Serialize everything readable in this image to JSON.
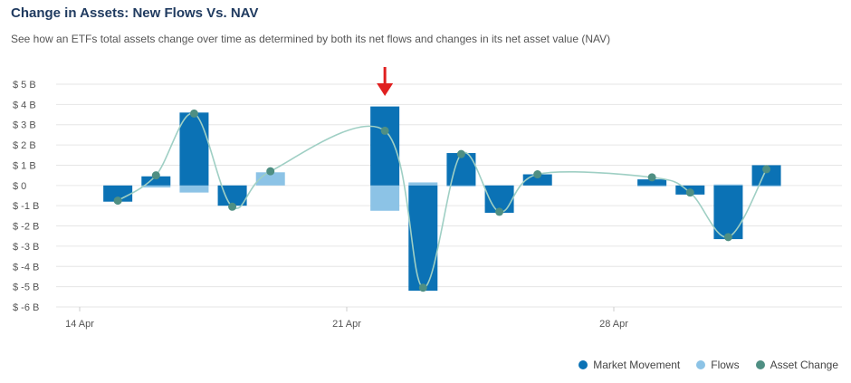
{
  "header": {
    "title": "Change in Assets: New Flows Vs. NAV",
    "subtitle": "See how an ETFs total assets change over time as determined by both its net flows and changes in its net asset value (NAV)"
  },
  "colors": {
    "market_movement": "#0b72b5",
    "flows": "#8cc3e6",
    "asset_change_line": "#9fcfc4",
    "asset_change_dot": "#4f8f83",
    "arrow": "#e02020",
    "grid": "#e6e6e6",
    "axis_text": "#555555"
  },
  "legend": {
    "items": [
      {
        "label": "Market Movement",
        "color": "#0b72b5"
      },
      {
        "label": "Flows",
        "color": "#8cc3e6"
      },
      {
        "label": "Asset Change",
        "color": "#4f8f83"
      }
    ]
  },
  "chart_data": {
    "type": "bar",
    "title": "Change in Assets: New Flows Vs. NAV",
    "ylim": [
      -6,
      5
    ],
    "y_ticks": [
      5,
      4,
      3,
      2,
      1,
      0,
      -1,
      -2,
      -3,
      -4,
      -5,
      -6
    ],
    "y_tick_labels": [
      "$ 5 B",
      "$ 4 B",
      "$ 3 B",
      "$ 2 B",
      "$ 1 B",
      "$ 0",
      "$ -1 B",
      "$ -2 B",
      "$ -3 B",
      "$ -4 B",
      "$ -5 B",
      "$ -6 B"
    ],
    "x_tick_labels": [
      "14 Apr",
      "21 Apr",
      "28 Apr"
    ],
    "x_tick_dates": [
      "2024-04-14",
      "2024-04-21",
      "2024-04-28"
    ],
    "dates": [
      "2024-04-15",
      "2024-04-16",
      "2024-04-17",
      "2024-04-18",
      "2024-04-19",
      "2024-04-22",
      "2024-04-23",
      "2024-04-24",
      "2024-04-25",
      "2024-04-26",
      "2024-04-29",
      "2024-04-30",
      "2024-05-01",
      "2024-05-02",
      "2024-05-03"
    ],
    "series": [
      {
        "name": "Market Movement",
        "values": [
          -0.8,
          0.45,
          3.6,
          -1.0,
          0.0,
          3.9,
          -5.2,
          1.6,
          -1.35,
          0.55,
          0.3,
          -0.45,
          -2.65,
          1.0,
          null
        ]
      },
      {
        "name": "Flows",
        "values": [
          0.0,
          -0.1,
          -0.35,
          -0.45,
          0.65,
          -1.25,
          0.15,
          -0.05,
          -0.2,
          0.0,
          -0.05,
          0.0,
          0.05,
          -0.05,
          null
        ]
      },
      {
        "name": "Asset Change",
        "values": [
          -0.75,
          0.5,
          3.55,
          -1.05,
          0.7,
          2.7,
          -5.05,
          1.55,
          -1.3,
          0.55,
          0.4,
          -0.35,
          -2.55,
          0.8,
          null
        ]
      }
    ],
    "annotation_arrow_date": "2024-04-22",
    "grid": true,
    "legend_position": "bottom-right"
  }
}
